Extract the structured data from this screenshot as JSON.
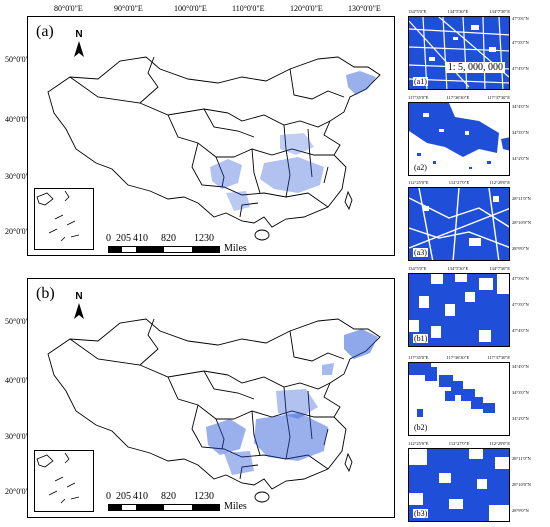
{
  "panel_a": {
    "letter": "(a)",
    "north": "N",
    "lon_ticks": [
      "80°0'0\"E",
      "90°0'0\"E",
      "100°0'0\"E",
      "110°0'0\"E",
      "120°0'0\"E",
      "130°0'0\"E"
    ],
    "lat_ticks": [
      "50°0'0\"N",
      "40°0'0\"N",
      "30°0'0\"N",
      "20°0'0\"N"
    ],
    "scale": {
      "values": [
        "0",
        "205",
        "410",
        "820",
        "1230"
      ],
      "unit": "Miles"
    }
  },
  "panel_b": {
    "letter": "(b)",
    "north": "N",
    "lat_ticks": [
      "50°0'0\"N",
      "40°0'0\"N",
      "30°0'0\"N",
      "20°0'0\"N"
    ],
    "scale": {
      "values": [
        "0",
        "205",
        "410",
        "820",
        "1230"
      ],
      "unit": "Miles"
    }
  },
  "details": {
    "a1": {
      "label": "(a1)",
      "ratio": "1: 5, 000, 000",
      "top": [
        "134°5'0\"E",
        "134°5'30\"E",
        "134°7'30\"E"
      ],
      "right": [
        "47°3'6\"N",
        "47°3'0\"N",
        "47°4'0\"N"
      ]
    },
    "a2": {
      "label": "(a2)",
      "top": [
        "117°35'0\"E",
        "117°36'30\"E",
        "117°37'30\"E"
      ],
      "right": [
        "34°4'0\"N",
        "34°3'0\"N",
        "34°2'0\"N"
      ]
    },
    "a3": {
      "label": "(a3)",
      "top": [
        "112°25'0\"E",
        "112°27'0\"E",
        "112°29'0\"E"
      ],
      "right": [
        "28°11'0\"N",
        "28°10'0\"N",
        "28°9'0\"N"
      ]
    },
    "b1": {
      "label": "(b1)",
      "top": [
        "134°5'0\"E",
        "134°5'30\"E",
        "134°7'30\"E"
      ],
      "right": [
        "47°3'6\"N",
        "47°3'0\"N",
        "47°4'0\"N"
      ]
    },
    "b2": {
      "label": "(b2)",
      "top": [
        "117°35'0\"E",
        "117°36'30\"E",
        "117°37'30\"E"
      ],
      "right": [
        "34°4'0\"N",
        "34°3'0\"N",
        "34°2'0\"N"
      ]
    },
    "b3": {
      "label": "(b3)",
      "top": [
        "112°25'0\"E",
        "112°27'0\"E",
        "112°29'0\"E"
      ],
      "right": [
        "28°11'0\"N",
        "28°10'0\"N",
        "28°9'0\"N"
      ]
    }
  },
  "colors": {
    "highlight": "#1f4fd8",
    "outline": "#000000",
    "background": "#ffffff"
  }
}
